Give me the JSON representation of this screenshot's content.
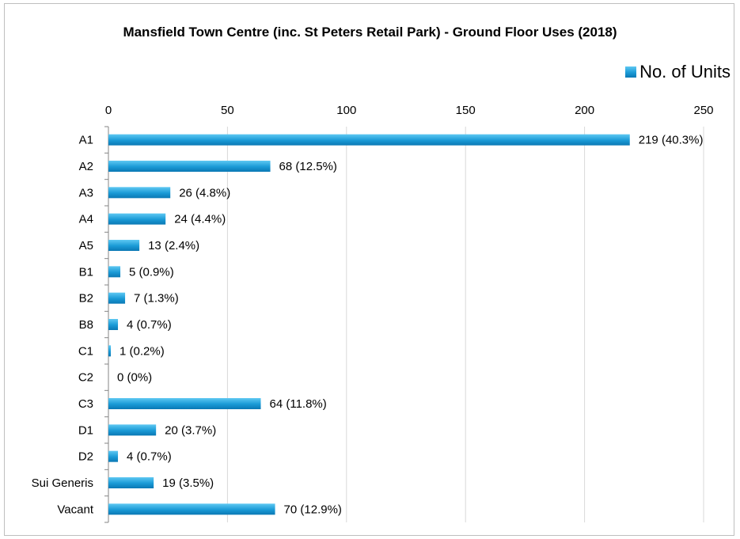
{
  "chart_data": {
    "type": "bar",
    "orientation": "horizontal",
    "title": "Mansfield Town Centre (inc. St Peters Retail Park) - Ground Floor Uses (2018)",
    "xlabel": "",
    "ylabel": "",
    "xlim": [
      0,
      250
    ],
    "x_ticks": [
      0,
      50,
      100,
      150,
      200,
      250
    ],
    "x_axis_position": "top",
    "grid": "vertical",
    "legend_position": "top-right",
    "categories": [
      "A1",
      "A2",
      "A3",
      "A4",
      "A5",
      "B1",
      "B2",
      "B8",
      "C1",
      "C2",
      "C3",
      "D1",
      "D2",
      "Sui Generis",
      "Vacant"
    ],
    "series": [
      {
        "name": "No. of Units",
        "color": "#1a9ad6",
        "values": [
          219,
          68,
          26,
          24,
          13,
          5,
          7,
          4,
          1,
          0,
          64,
          20,
          4,
          19,
          70
        ],
        "data_labels": [
          "219 (40.3%)",
          "68 (12.5%)",
          "26 (4.8%)",
          "24 (4.4%)",
          "13 (2.4%)",
          "5 (0.9%)",
          "7 (1.3%)",
          "4 (0.7%)",
          "1 (0.2%)",
          "0 (0%)",
          "64 (11.8%)",
          "20 (3.7%)",
          "4 (0.7%)",
          "19 (3.5%)",
          "70 (12.9%)"
        ]
      }
    ]
  }
}
